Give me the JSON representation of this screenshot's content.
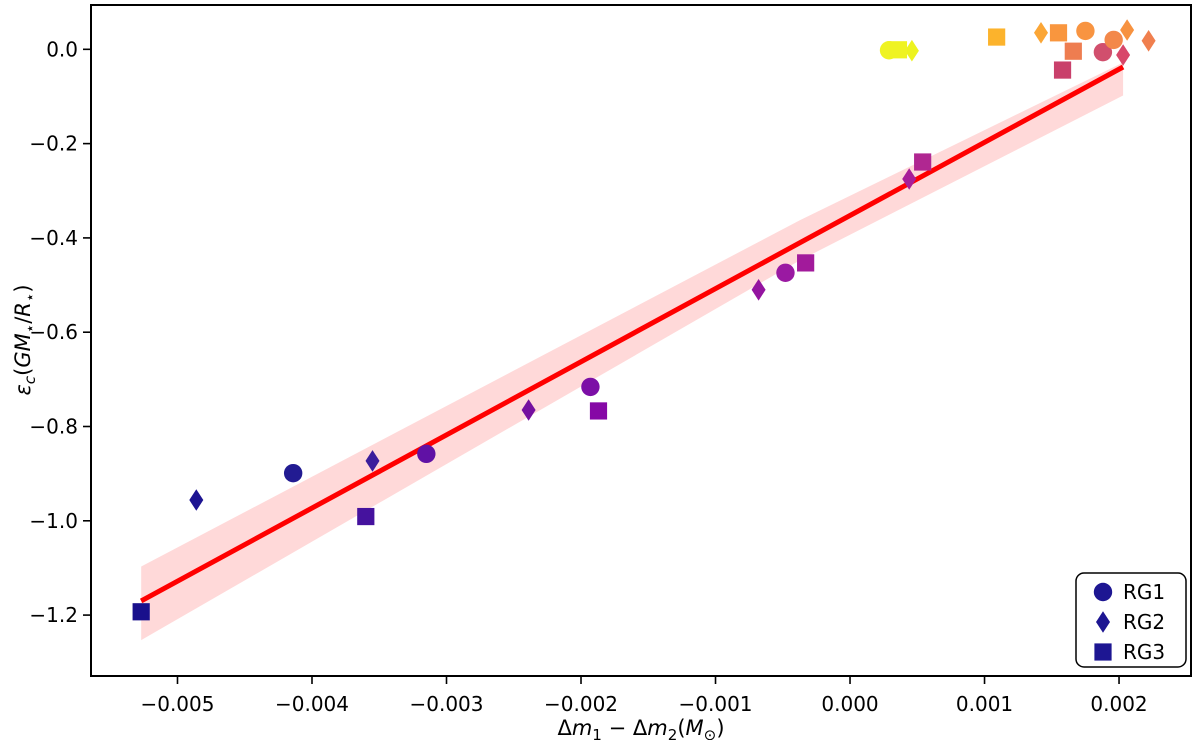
{
  "chart_data": {
    "type": "scatter",
    "title": "",
    "xlabel_segments": [
      {
        "text": "Δ",
        "style": "normal",
        "script": "normal"
      },
      {
        "text": "m",
        "style": "italic",
        "script": "normal"
      },
      {
        "text": "1",
        "style": "normal",
        "script": "sub"
      },
      {
        "text": " − ",
        "style": "normal",
        "script": "normal"
      },
      {
        "text": "Δ",
        "style": "normal",
        "script": "normal"
      },
      {
        "text": "m",
        "style": "italic",
        "script": "normal"
      },
      {
        "text": "2",
        "style": "normal",
        "script": "sub"
      },
      {
        "text": "(",
        "style": "normal",
        "script": "normal"
      },
      {
        "text": "M",
        "style": "italic",
        "script": "normal"
      },
      {
        "text": "⊙",
        "style": "normal",
        "script": "sub"
      },
      {
        "text": ")",
        "style": "normal",
        "script": "normal"
      }
    ],
    "ylabel_segments": [
      {
        "text": "ε",
        "style": "italic",
        "script": "normal"
      },
      {
        "text": "c",
        "style": "italic",
        "script": "sub"
      },
      {
        "text": "(",
        "style": "normal",
        "script": "normal"
      },
      {
        "text": "G",
        "style": "italic",
        "script": "normal"
      },
      {
        "text": "M",
        "style": "italic",
        "script": "normal"
      },
      {
        "text": "⋆",
        "style": "normal",
        "script": "sub"
      },
      {
        "text": "/",
        "style": "normal",
        "script": "normal"
      },
      {
        "text": "R",
        "style": "italic",
        "script": "normal"
      },
      {
        "text": "⋆",
        "style": "normal",
        "script": "sub"
      },
      {
        "text": ")",
        "style": "normal",
        "script": "normal"
      }
    ],
    "xlim": [
      -0.005643,
      0.002535
    ],
    "ylim": [
      -1.3292,
      0.094
    ],
    "grid": false,
    "xticks": {
      "values": [
        -0.005,
        -0.004,
        -0.003,
        -0.002,
        -0.001,
        0.0,
        0.001,
        0.002
      ],
      "labels": [
        "−0.005",
        "−0.004",
        "−0.003",
        "−0.002",
        "−0.001",
        "0.000",
        "0.001",
        "0.002"
      ]
    },
    "yticks": {
      "values": [
        0.0,
        -0.2,
        -0.4,
        -0.6,
        -0.8,
        -1.0,
        -1.2
      ],
      "labels": [
        "0.0",
        "−0.2",
        "−0.4",
        "−0.6",
        "−0.8",
        "−1.0",
        "−1.2"
      ]
    },
    "fit": {
      "line": {
        "x1": -0.00527,
        "y1": -1.17,
        "x2": 0.00203,
        "y2": -0.0375,
        "color": "#ff0000",
        "width": 5
      },
      "band": {
        "color": "#ff0000",
        "opacity": 0.15,
        "points": [
          [
            -0.00527,
            -1.097
          ],
          [
            -0.00037,
            -0.362
          ],
          [
            0.00203,
            -0.028
          ],
          [
            0.00203,
            -0.098
          ],
          [
            -0.00037,
            -0.447
          ],
          [
            -0.00527,
            -1.253
          ]
        ]
      }
    },
    "series": [
      {
        "name": "RG1",
        "marker": "circle",
        "points": [
          {
            "x": -0.00414,
            "y": -0.899,
            "color": "#221b92"
          },
          {
            "x": -0.00315,
            "y": -0.858,
            "color": "#6011a5"
          },
          {
            "x": -0.00193,
            "y": -0.716,
            "color": "#7c0fa6"
          },
          {
            "x": -0.00048,
            "y": -0.474,
            "color": "#9a19a2"
          },
          {
            "x": 0.00029,
            "y": -0.002,
            "color": "#eff322"
          },
          {
            "x": 0.00175,
            "y": 0.039,
            "color": "#f89441"
          },
          {
            "x": 0.00188,
            "y": -0.006,
            "color": "#d14f6d"
          },
          {
            "x": 0.00196,
            "y": 0.02,
            "color": "#f3884a"
          }
        ]
      },
      {
        "name": "RG2",
        "marker": "diamond",
        "points": [
          {
            "x": -0.00486,
            "y": -0.956,
            "color": "#1d1492"
          },
          {
            "x": -0.00355,
            "y": -0.873,
            "color": "#3b1e9c"
          },
          {
            "x": -0.00239,
            "y": -0.765,
            "color": "#75109f"
          },
          {
            "x": -0.00068,
            "y": -0.51,
            "color": "#9414a0"
          },
          {
            "x": 0.00044,
            "y": -0.275,
            "color": "#a81d99"
          },
          {
            "x": 0.00046,
            "y": -0.003,
            "color": "#edf31f"
          },
          {
            "x": 0.00142,
            "y": 0.035,
            "color": "#fba636"
          },
          {
            "x": 0.00203,
            "y": -0.012,
            "color": "#d8476a"
          },
          {
            "x": 0.00206,
            "y": 0.041,
            "color": "#f79240"
          },
          {
            "x": 0.00222,
            "y": 0.018,
            "color": "#f07f4e"
          }
        ]
      },
      {
        "name": "RG3",
        "marker": "square",
        "points": [
          {
            "x": -0.00527,
            "y": -1.193,
            "color": "#19108c"
          },
          {
            "x": -0.0036,
            "y": -0.991,
            "color": "#45129e"
          },
          {
            "x": -0.00187,
            "y": -0.767,
            "color": "#8608a6"
          },
          {
            "x": -0.00033,
            "y": -0.453,
            "color": "#a21a9b"
          },
          {
            "x": 0.00036,
            "y": -0.001,
            "color": "#eff322"
          },
          {
            "x": 0.00054,
            "y": -0.239,
            "color": "#b02791"
          },
          {
            "x": 0.00109,
            "y": 0.026,
            "color": "#fcb32c"
          },
          {
            "x": 0.00155,
            "y": 0.035,
            "color": "#f9963e"
          },
          {
            "x": 0.00158,
            "y": -0.044,
            "color": "#c9406b"
          },
          {
            "x": 0.00166,
            "y": -0.004,
            "color": "#ee7d50"
          }
        ]
      }
    ],
    "legend": {
      "position": "lower right",
      "marker_color": "#1d1692",
      "items": [
        {
          "label": "RG1",
          "marker": "circle"
        },
        {
          "label": "RG2",
          "marker": "diamond"
        },
        {
          "label": "RG3",
          "marker": "square"
        }
      ]
    }
  },
  "layout_colors": {
    "background": "#ffffff",
    "spine": "#000000",
    "text": "#000000"
  }
}
